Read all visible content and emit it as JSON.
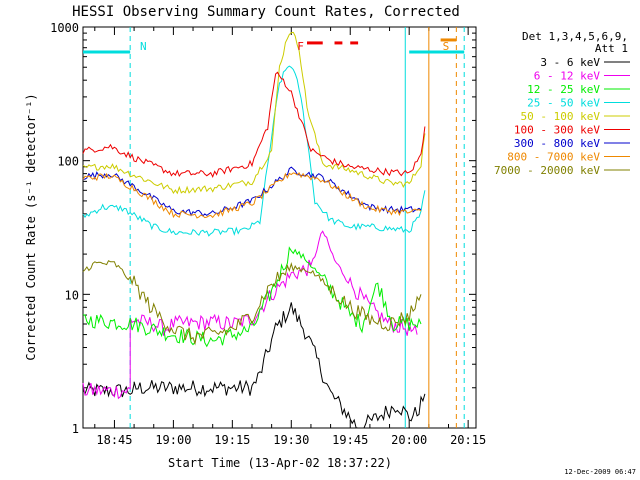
{
  "chart_data": {
    "type": "line",
    "title": "HESSI Observing Summary Count Rates, Corrected",
    "xlabel": "Start Time (13-Apr-02 18:37:22)",
    "ylabel": "Corrected Count Rate (s⁻¹ detector⁻¹)",
    "yscale": "log",
    "ylim": [
      1,
      1000
    ],
    "xlim": [
      "18:37",
      "20:17"
    ],
    "x_ticks": [
      "18:45",
      "19:00",
      "19:15",
      "19:30",
      "19:45",
      "20:00",
      "20:15"
    ],
    "y_ticks": [
      "1",
      "10",
      "100",
      "1000"
    ],
    "timestamp": "12-Dec-2009 06:47",
    "legend": {
      "position": "top-right",
      "header": [
        "Det 1,3,4,5,6,9,",
        "Att 1"
      ]
    },
    "series": [
      {
        "name": "3 - 6 keV",
        "color": "#000000",
        "x": [
          "18:37",
          "18:50",
          "18:50",
          "19:20",
          "19:22",
          "19:26",
          "19:30",
          "19:34",
          "19:37",
          "19:40",
          "19:44",
          "19:47",
          "19:52",
          "19:57",
          "20:00",
          "20:02",
          "20:04"
        ],
        "values": [
          1.9,
          1.9,
          2.0,
          2.0,
          2.5,
          5.5,
          8.0,
          5.0,
          3.0,
          1.8,
          1.3,
          1.0,
          1.2,
          1.5,
          1.2,
          1.3,
          1.8
        ]
      },
      {
        "name": "6 - 12 keV",
        "color": "#ee00ee",
        "x": [
          "18:37",
          "18:49",
          "18:49",
          "18:52",
          "18:55",
          "18:58",
          "19:00",
          "19:10",
          "19:15",
          "19:20",
          "19:25",
          "19:30",
          "19:35",
          "19:38",
          "19:41",
          "19:45",
          "19:50",
          "19:55",
          "20:00",
          "20:02"
        ],
        "values": [
          1.9,
          1.9,
          6.5,
          6.2,
          6.0,
          5.5,
          6.0,
          6.2,
          6.0,
          6.5,
          10,
          14,
          16,
          30,
          18,
          12,
          8,
          6,
          5.5,
          5.0
        ]
      },
      {
        "name": "12 - 25 keV",
        "color": "#00ee00",
        "x": [
          "18:37",
          "18:50",
          "19:00",
          "19:10",
          "19:20",
          "19:26",
          "19:30",
          "19:34",
          "19:38",
          "19:41",
          "19:45",
          "19:48",
          "19:52",
          "19:56",
          "20:00",
          "20:03"
        ],
        "values": [
          6.5,
          6.0,
          5.0,
          4.5,
          5.5,
          12,
          22,
          18,
          13,
          10,
          7,
          6,
          12,
          6,
          6,
          6
        ]
      },
      {
        "name": "25 - 50 keV",
        "color": "#00dddd",
        "x": [
          "18:37",
          "18:42",
          "18:47",
          "18:55",
          "19:00",
          "19:10",
          "19:18",
          "19:22",
          "19:25",
          "19:27",
          "19:29",
          "19:30",
          "19:32",
          "19:34",
          "19:36",
          "19:40",
          "19:45",
          "19:50",
          "19:55",
          "20:00",
          "20:03",
          "20:04"
        ],
        "values": [
          38,
          45,
          44,
          32,
          29,
          29,
          30,
          35,
          150,
          380,
          500,
          520,
          350,
          150,
          50,
          36,
          32,
          32,
          31,
          30,
          40,
          60
        ]
      },
      {
        "name": "50 - 100 keV",
        "color": "#cccc00",
        "x": [
          "18:37",
          "18:44",
          "18:50",
          "19:00",
          "19:10",
          "19:20",
          "19:25",
          "19:27",
          "19:29",
          "19:30",
          "19:32",
          "19:34",
          "19:38",
          "19:45",
          "19:55",
          "20:00",
          "20:03",
          "20:04"
        ],
        "values": [
          88,
          92,
          78,
          60,
          62,
          70,
          120,
          500,
          850,
          950,
          700,
          250,
          95,
          85,
          68,
          67,
          95,
          160
        ]
      },
      {
        "name": "100 - 300 keV",
        "color": "#ee0000",
        "x": [
          "18:37",
          "18:44",
          "18:50",
          "19:00",
          "19:10",
          "19:20",
          "19:24",
          "19:26",
          "19:28",
          "19:30",
          "19:32",
          "19:35",
          "19:40",
          "19:45",
          "19:55",
          "20:00",
          "20:03",
          "20:04"
        ],
        "values": [
          118,
          128,
          105,
          80,
          80,
          95,
          180,
          450,
          400,
          320,
          220,
          120,
          100,
          90,
          82,
          80,
          110,
          180
        ]
      },
      {
        "name": "300 - 800 keV",
        "color": "#0000cc",
        "x": [
          "18:37",
          "18:44",
          "18:50",
          "19:00",
          "19:10",
          "19:20",
          "19:30",
          "19:38",
          "19:45",
          "19:50",
          "19:55",
          "20:00",
          "20:03"
        ],
        "values": [
          76,
          80,
          64,
          42,
          40,
          50,
          85,
          75,
          55,
          45,
          43,
          43,
          43
        ]
      },
      {
        "name": "800 - 7000 keV",
        "color": "#ee8800",
        "x": [
          "18:37",
          "18:44",
          "18:50",
          "19:00",
          "19:10",
          "19:20",
          "19:30",
          "19:38",
          "19:45",
          "19:50",
          "19:55",
          "20:00",
          "20:03"
        ],
        "values": [
          74,
          77,
          62,
          40,
          39,
          48,
          82,
          72,
          53,
          44,
          42,
          41,
          42
        ]
      },
      {
        "name": "7000 - 20000 keV",
        "color": "#808000",
        "x": [
          "18:37",
          "18:40",
          "18:45",
          "18:50",
          "18:55",
          "19:00",
          "19:05",
          "19:10",
          "19:15",
          "19:20",
          "19:25",
          "19:30",
          "19:35",
          "19:40",
          "19:45",
          "19:50",
          "19:55",
          "20:00",
          "20:03"
        ],
        "values": [
          15,
          17,
          17,
          12,
          7.5,
          5.5,
          4.8,
          5,
          5.5,
          7,
          12,
          16,
          15,
          11,
          8,
          6.5,
          6,
          7,
          10
        ]
      }
    ],
    "annotations": {
      "top_labels": [
        {
          "text": "N",
          "time": "18:51",
          "color": "#00dddd"
        },
        {
          "text": "F",
          "time": "19:31",
          "color": "#ee0000"
        },
        {
          "text": "S",
          "time": "20:08",
          "color": "#ee8800"
        }
      ],
      "bars": [
        {
          "start": "18:37",
          "end": "18:49",
          "level": 650,
          "color": "#00dddd"
        },
        {
          "start": "19:34",
          "end": "19:38",
          "level": 760,
          "color": "#ee0000"
        },
        {
          "start": "19:41",
          "end": "19:43",
          "level": 760,
          "color": "#ee0000"
        },
        {
          "start": "19:45",
          "end": "19:47",
          "level": 760,
          "color": "#ee0000"
        },
        {
          "start": "20:00",
          "end": "20:14",
          "level": 650,
          "color": "#00dddd"
        },
        {
          "start": "20:08",
          "end": "20:12",
          "level": 800,
          "color": "#ee8800"
        }
      ],
      "vertical_lines": [
        {
          "time": "18:49",
          "color": "#00dddd",
          "style": "dashed"
        },
        {
          "time": "19:59",
          "color": "#00dddd",
          "style": "solid"
        },
        {
          "time": "20:05",
          "color": "#ee8800",
          "style": "solid"
        },
        {
          "time": "20:12",
          "color": "#ee8800",
          "style": "dashed"
        },
        {
          "time": "20:14",
          "color": "#00dddd",
          "style": "dashed"
        }
      ]
    }
  }
}
